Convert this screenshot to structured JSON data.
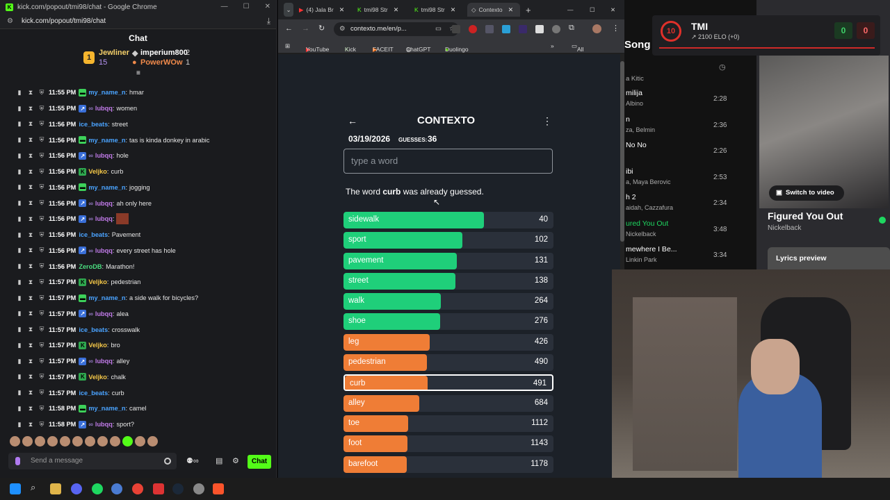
{
  "kick": {
    "window_title": "kick.com/popout/tmi98/chat - Google Chrome",
    "url": "kick.com/popout/tmi98/chat",
    "header": "Chat",
    "gifters": [
      {
        "rank": "1",
        "name": "Jewliner",
        "count": "15"
      },
      {
        "rank": "",
        "name": "imperium800",
        "count": "2"
      },
      {
        "rank": "",
        "name": "PowerWOw",
        "count": "1"
      }
    ],
    "messages": [
      {
        "time": "11:55 PM",
        "user": "my_name_n",
        "color": "#4aa3ff",
        "badge": "green",
        "text": "hmar"
      },
      {
        "time": "11:55 PM",
        "user": "lubqq",
        "color": "#c07ae8",
        "badge": "blue",
        "text": "women"
      },
      {
        "time": "11:56 PM",
        "user": "ice_beats",
        "color": "#4aa3ff",
        "badge": "",
        "text": "street"
      },
      {
        "time": "11:56 PM",
        "user": "my_name_n",
        "color": "#4aa3ff",
        "badge": "green",
        "text": "tas is kinda donkey in arabic"
      },
      {
        "time": "11:56 PM",
        "user": "lubqq",
        "color": "#c07ae8",
        "badge": "blue",
        "text": "hole"
      },
      {
        "time": "11:56 PM",
        "user": "Veljko",
        "color": "#f7c948",
        "badge": "kgreen",
        "text": "curb"
      },
      {
        "time": "11:56 PM",
        "user": "my_name_n",
        "color": "#4aa3ff",
        "badge": "green",
        "text": "jogging"
      },
      {
        "time": "11:56 PM",
        "user": "lubqq",
        "color": "#c07ae8",
        "badge": "blue",
        "text": "ah only here"
      },
      {
        "time": "11:56 PM",
        "user": "lubqq",
        "color": "#c07ae8",
        "badge": "blue",
        "text": ""
      },
      {
        "time": "11:56 PM",
        "user": "ice_beats",
        "color": "#4aa3ff",
        "badge": "",
        "text": "Pavement"
      },
      {
        "time": "11:56 PM",
        "user": "lubqq",
        "color": "#c07ae8",
        "badge": "blue",
        "text": "every street has hole"
      },
      {
        "time": "11:56 PM",
        "user": "ZeroDB",
        "color": "#4ade80",
        "badge": "",
        "text": "Marathon!"
      },
      {
        "time": "11:57 PM",
        "user": "Veljko",
        "color": "#f7c948",
        "badge": "kgreen",
        "text": "pedestrian"
      },
      {
        "time": "11:57 PM",
        "user": "my_name_n",
        "color": "#4aa3ff",
        "badge": "green",
        "text": "a side walk for bicycles?"
      },
      {
        "time": "11:57 PM",
        "user": "lubqq",
        "color": "#c07ae8",
        "badge": "blue",
        "text": "alea"
      },
      {
        "time": "11:57 PM",
        "user": "ice_beats",
        "color": "#4aa3ff",
        "badge": "",
        "text": "crosswalk"
      },
      {
        "time": "11:57 PM",
        "user": "Veljko",
        "color": "#f7c948",
        "badge": "kgreen",
        "text": "bro"
      },
      {
        "time": "11:57 PM",
        "user": "lubqq",
        "color": "#c07ae8",
        "badge": "blue",
        "text": "alley"
      },
      {
        "time": "11:57 PM",
        "user": "Veljko",
        "color": "#f7c948",
        "badge": "kgreen",
        "text": "chalk"
      },
      {
        "time": "11:57 PM",
        "user": "ice_beats",
        "color": "#4aa3ff",
        "badge": "",
        "text": "curb"
      },
      {
        "time": "11:58 PM",
        "user": "my_name_n",
        "color": "#4aa3ff",
        "badge": "green",
        "text": "camel"
      },
      {
        "time": "11:58 PM",
        "user": "lubqq",
        "color": "#c07ae8",
        "badge": "blue",
        "text": "sport?"
      }
    ],
    "input_placeholder": "Send a message",
    "chat_button": "Chat"
  },
  "browser": {
    "tabs": [
      "(4) Jala Br",
      "tmi98 Str",
      "tmi98 Str",
      "Contexto"
    ],
    "url": "contexto.me/en/p...",
    "bookmarks": [
      "YouTube",
      "Kick",
      "FACEIT",
      "ChatGPT",
      "Duolingo"
    ],
    "all_bookmarks": "All Bookmarks"
  },
  "contexto": {
    "title": "CONTEXTO",
    "date": "03/19/2026",
    "guesses_label": "GUESSES:",
    "guesses": "36",
    "input_placeholder": "type a word",
    "message_pre": "The word ",
    "message_word": "curb",
    "message_post": " was already guessed.",
    "words": [
      {
        "word": "sidewalk",
        "rank": 40,
        "color": "#1fcf7a"
      },
      {
        "word": "sport",
        "rank": 102,
        "color": "#1fcf7a"
      },
      {
        "word": "pavement",
        "rank": 131,
        "color": "#1fcf7a"
      },
      {
        "word": "street",
        "rank": 138,
        "color": "#1fcf7a"
      },
      {
        "word": "walk",
        "rank": 264,
        "color": "#1fcf7a"
      },
      {
        "word": "shoe",
        "rank": 276,
        "color": "#1fcf7a"
      },
      {
        "word": "leg",
        "rank": 426,
        "color": "#ef7d36"
      },
      {
        "word": "pedestrian",
        "rank": 490,
        "color": "#ef7d36"
      },
      {
        "word": "curb",
        "rank": 491,
        "color": "#ef7d36"
      },
      {
        "word": "alley",
        "rank": 684,
        "color": "#ef7d36"
      },
      {
        "word": "toe",
        "rank": 1112,
        "color": "#ef7d36"
      },
      {
        "word": "foot",
        "rank": 1143,
        "color": "#ef7d36"
      },
      {
        "word": "barefoot",
        "rank": 1178,
        "color": "#ef7d36"
      }
    ],
    "current_word": "curb"
  },
  "spotify": {
    "header": "Song",
    "songs": [
      {
        "title": "milija",
        "artist": "Albino",
        "time": "2:28"
      },
      {
        "title": "n",
        "artist": "za, Belmin",
        "time": "2:36"
      },
      {
        "title": "No No",
        "artist": "",
        "time": "2:26"
      },
      {
        "title": "ibi",
        "artist": "a, Maya Berovic",
        "time": "2:53"
      },
      {
        "title": "h 2",
        "artist": "aidah, Cazzafura",
        "time": "2:34"
      },
      {
        "title": "ured You Out",
        "artist": "Nickelback",
        "time": "3:48"
      },
      {
        "title": "mewhere I Be...",
        "artist": "Linkin Park",
        "time": "3:34"
      }
    ],
    "first_artist": "a Kitic"
  },
  "now_playing": {
    "switch": "Switch to video",
    "title": "Figured You Out",
    "artist": "Nickelback",
    "lyrics": "Lyrics preview"
  },
  "faceit": {
    "level": "10",
    "name": "TMI",
    "elo": "2100 ELO (+0)",
    "score_left": "0",
    "score_right": "0"
  }
}
